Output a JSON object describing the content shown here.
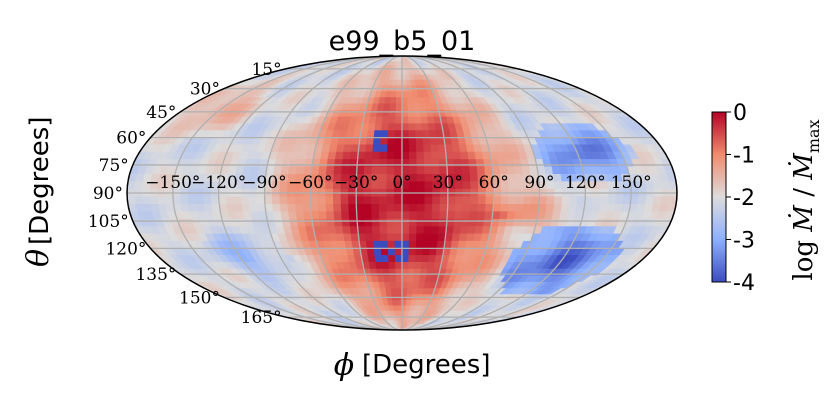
{
  "chart_data": {
    "type": "heatmap",
    "projection": "mollweide",
    "title": "e99_b5_01",
    "xlabel_symbol": "ϕ",
    "xlabel_text": "[Degrees]",
    "ylabel_symbol": "θ",
    "ylabel_text": "[Degrees]",
    "phi_ticks": [
      "−150°",
      "−120°",
      "−90°",
      "−60°",
      "−30°",
      "0°",
      "30°",
      "60°",
      "90°",
      "120°",
      "150°"
    ],
    "theta_ticks": [
      "15°",
      "30°",
      "45°",
      "60°",
      "75°",
      "90°",
      "105°",
      "120°",
      "135°",
      "150°",
      "165°"
    ],
    "grid": true,
    "colorbar": {
      "label": "log Ṁ / Ṁmax",
      "range": [
        -4,
        0
      ],
      "ticks": [
        "0",
        "-1",
        "-2",
        "-3",
        "-4"
      ],
      "colormap": "coolwarm",
      "placement": "right"
    },
    "field_features": [
      {
        "name": "central-red-lobe",
        "phi_center": 0,
        "theta_center": 90,
        "log_value": -0.3
      },
      {
        "name": "left-lobe-a",
        "phi_center": -30,
        "theta_center": 60,
        "log_value": -1.0
      },
      {
        "name": "right-red-band",
        "phi_center": 60,
        "theta_center": 100,
        "log_value": -0.9
      },
      {
        "name": "right-blue-patch-upper",
        "phi_center": 125,
        "theta_center": 70,
        "log_value": -3.5
      },
      {
        "name": "right-blue-patch-lower",
        "phi_center": 120,
        "theta_center": 125,
        "log_value": -3.8
      },
      {
        "name": "upper-left-red",
        "phi_center": -150,
        "theta_center": 45,
        "log_value": -1.4
      },
      {
        "name": "left-blue-patch",
        "phi_center": -120,
        "theta_center": 125,
        "log_value": -3.0
      }
    ],
    "mask_patches_value": -4
  }
}
